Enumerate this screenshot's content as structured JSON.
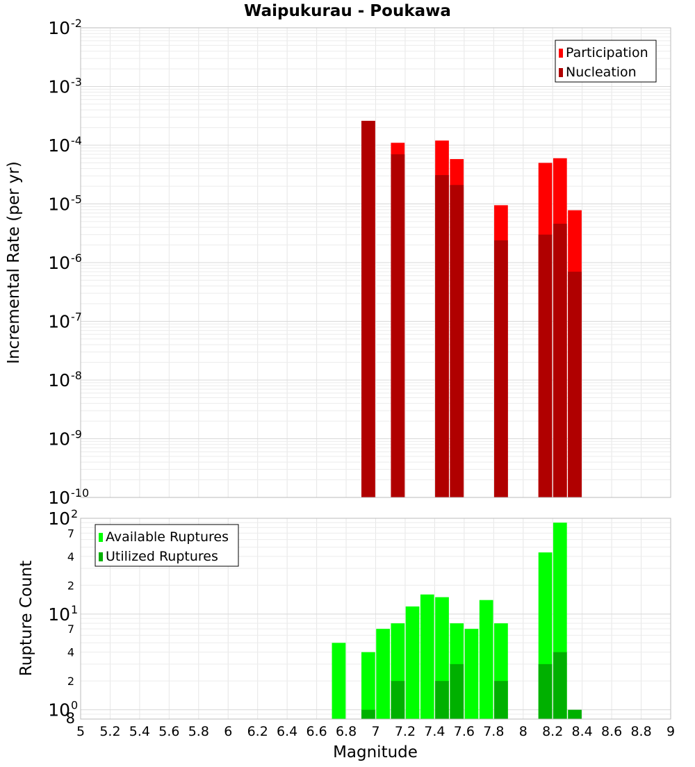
{
  "title": "Waipukurau - Poukawa",
  "colors": {
    "participation": "#ff0000",
    "nucleation": "#b00000",
    "available": "#00ff00",
    "utilized": "#00b000",
    "grid": "#e6e6e6",
    "frame": "#bbbbbb"
  },
  "chart_data": [
    {
      "type": "bar",
      "title": "Waipukurau - Poukawa",
      "xlabel": "",
      "ylabel": "Incremental Rate (per yr)",
      "yscale": "log",
      "ylim": [
        1e-10,
        0.01
      ],
      "xlim": [
        5,
        9
      ],
      "ytick_exponents": [
        "-2",
        "-3",
        "-4",
        "-5",
        "-6",
        "-7",
        "-8",
        "-9",
        "-10"
      ],
      "legend": {
        "position": "top-right",
        "entries": [
          "Participation",
          "Nucleation"
        ]
      },
      "x": [
        6.95,
        7.15,
        7.45,
        7.55,
        7.85,
        8.15,
        8.25,
        8.35
      ],
      "series": [
        {
          "name": "Participation",
          "values": [
            0.00026,
            0.00011,
            0.00012,
            5.8e-05,
            9.5e-06,
            5e-05,
            6e-05,
            7.8e-06
          ]
        },
        {
          "name": "Nucleation",
          "values": [
            0.00026,
            7e-05,
            3.1e-05,
            2.1e-05,
            2.4e-06,
            3e-06,
            4.6e-06,
            7e-07
          ]
        }
      ],
      "grid": true
    },
    {
      "type": "bar",
      "title": "",
      "xlabel": "Magnitude",
      "ylabel": "Rupture Count",
      "yscale": "log",
      "ylim": [
        0.8,
        100
      ],
      "xlim": [
        5,
        9
      ],
      "ytick_labels": {
        "major": [
          {
            "value": 100,
            "base": "10",
            "exp": "2"
          },
          {
            "value": 10,
            "base": "10",
            "exp": "1"
          },
          {
            "value": 1,
            "base": "10",
            "exp": "0"
          }
        ],
        "minor": [
          {
            "value": 70,
            "label": "7"
          },
          {
            "value": 40,
            "label": "4"
          },
          {
            "value": 20,
            "label": "2"
          },
          {
            "value": 7,
            "label": "7"
          },
          {
            "value": 4,
            "label": "4"
          },
          {
            "value": 2,
            "label": "2"
          }
        ],
        "bottom": "8"
      },
      "xticks": [
        "5",
        "5.2",
        "5.4",
        "5.6",
        "5.8",
        "6",
        "6.2",
        "6.4",
        "6.6",
        "6.8",
        "7",
        "7.2",
        "7.4",
        "7.6",
        "7.8",
        "8",
        "8.2",
        "8.4",
        "8.6",
        "8.8",
        "9"
      ],
      "legend": {
        "position": "top-left",
        "entries": [
          "Available Ruptures",
          "Utilized Ruptures"
        ]
      },
      "series": [
        {
          "name": "Available Ruptures",
          "x": [
            6.75,
            6.95,
            7.05,
            7.15,
            7.25,
            7.35,
            7.45,
            7.55,
            7.65,
            7.75,
            7.85,
            8.15,
            8.25
          ],
          "values": [
            5,
            4,
            7,
            8,
            12,
            16,
            15,
            8,
            7,
            14,
            8,
            44,
            90
          ]
        },
        {
          "name": "Utilized Ruptures",
          "x": [
            6.95,
            7.15,
            7.45,
            7.55,
            7.85,
            8.15,
            8.25,
            8.35
          ],
          "values": [
            1,
            2,
            2,
            3,
            2,
            3,
            4,
            1
          ]
        }
      ],
      "grid": true
    }
  ]
}
